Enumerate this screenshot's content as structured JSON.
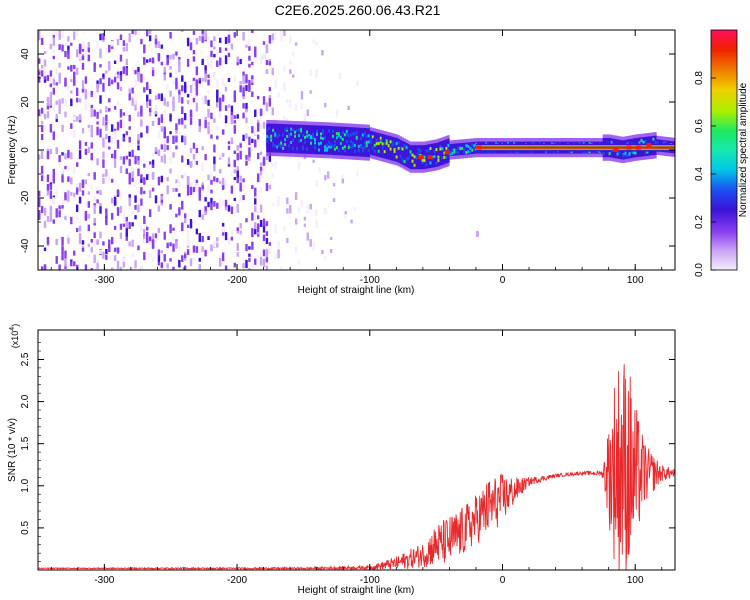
{
  "title": "C2E6.2025.260.06.43.R21",
  "colors": {
    "axis": "#000000",
    "snr_line": "#e8282b",
    "background": "#ffffff",
    "colormap": [
      "#f5eefc",
      "#caa5f5",
      "#8a3ef0",
      "#3b13d9",
      "#1d4cf0",
      "#00c8e8",
      "#1ee860",
      "#a8f000",
      "#f0a000",
      "#f02000",
      "#ff1060"
    ]
  },
  "chart_data": [
    {
      "name": "spectrogram",
      "type": "heatmap",
      "title": "C2E6.2025.260.06.43.R21",
      "xlabel": "Height of straight line (km)",
      "ylabel": "Frequency (Hz)",
      "xlim": [
        -350,
        130
      ],
      "ylim": [
        -50,
        50
      ],
      "xticks": [
        -300,
        -200,
        -100,
        0,
        100
      ],
      "yticks": [
        -40,
        -20,
        0,
        20,
        40
      ],
      "colorbar": {
        "label": "Normalized spectral amplitude",
        "range": [
          0,
          1
        ],
        "ticks": [
          "0.0",
          "0.2",
          "0.4",
          "0.6",
          "0.8"
        ]
      },
      "features": {
        "noise_region_x": [
          -350,
          -110
        ],
        "dense_noise_x": [
          -350,
          -175
        ],
        "band_center_hz": [
          [
            -175,
            5
          ],
          [
            -130,
            4
          ],
          [
            -100,
            3
          ],
          [
            -80,
            0
          ],
          [
            -70,
            -3
          ],
          [
            -60,
            -3
          ],
          [
            -50,
            -2
          ],
          [
            -40,
            0
          ],
          [
            -20,
            1
          ],
          [
            0,
            1
          ],
          [
            80,
            1
          ],
          [
            90,
            0
          ],
          [
            100,
            1
          ],
          [
            115,
            2
          ],
          [
            130,
            1
          ]
        ],
        "carrier_x": [
          -20,
          130
        ],
        "carrier_hz": 1
      }
    },
    {
      "name": "snr",
      "type": "line",
      "xlabel": "Height of straight line (km)",
      "ylabel": "SNR (10 * v/v)",
      "ylabel_multiplier": "(x10",
      "ylabel_multiplier_exp": "4",
      "ylabel_multiplier_close": ")",
      "xlim": [
        -350,
        130
      ],
      "ylim": [
        0,
        2.85
      ],
      "xticks": [
        -300,
        -200,
        -100,
        0,
        100
      ],
      "yticks": [
        "0.5",
        "1.0",
        "1.5",
        "2.0",
        "2.5"
      ],
      "ytick_values": [
        0.5,
        1.0,
        1.5,
        2.0,
        2.5
      ],
      "series": [
        {
          "name": "SNR",
          "envelope_x": [
            -350,
            -150,
            -100,
            -80,
            -60,
            -50,
            -40,
            -30,
            -20,
            -10,
            0,
            10,
            20,
            40,
            60,
            75,
            80,
            85,
            90,
            95,
            100,
            105,
            110,
            120,
            130
          ],
          "envelope_mean": [
            0.02,
            0.02,
            0.03,
            0.08,
            0.18,
            0.3,
            0.35,
            0.45,
            0.6,
            0.75,
            0.85,
            0.95,
            1.05,
            1.12,
            1.15,
            1.15,
            1.15,
            1.2,
            1.25,
            1.2,
            1.1,
            1.15,
            1.15,
            1.15,
            1.15
          ],
          "envelope_amp": [
            0.005,
            0.01,
            0.02,
            0.08,
            0.15,
            0.25,
            0.3,
            0.3,
            0.3,
            0.35,
            0.3,
            0.15,
            0.05,
            0.02,
            0.02,
            0.03,
            0.6,
            1.2,
            1.4,
            1.3,
            0.9,
            0.5,
            0.3,
            0.1,
            0.05
          ]
        }
      ]
    }
  ]
}
